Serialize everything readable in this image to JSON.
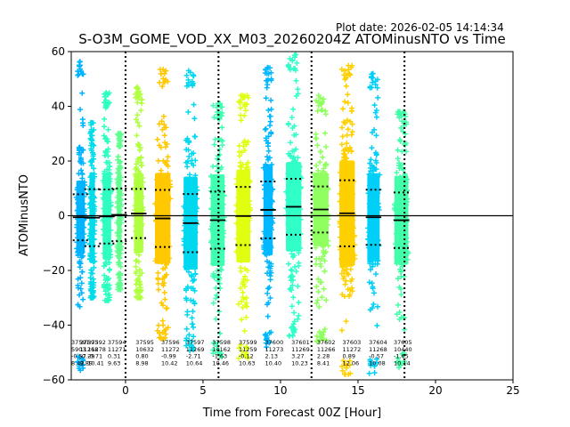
{
  "chart_data": {
    "type": "scatter",
    "plot_date_label": "Plot date: 2026-02-05 14:14:34",
    "title": "S-O3M_GOME_VOD_XX_M03_20260204Z ATOMinusNTO vs Time",
    "xlabel": "Time from Forecast 00Z [Hour]",
    "ylabel": "ATOMinusNTO",
    "xlim": [
      -3.5,
      25
    ],
    "ylim": [
      -60,
      60
    ],
    "xticks": [
      0,
      5,
      10,
      15,
      20,
      25
    ],
    "yticks": [
      -60,
      -40,
      -20,
      0,
      20,
      40,
      60
    ],
    "zero_line": 0,
    "vertical_dotted_lines_x": [
      0,
      6,
      12,
      18
    ],
    "marker": "+",
    "series": [
      {
        "orbit": "37591",
        "count": "5903",
        "mean": -0.57,
        "std": 8.42,
        "mean_label": "-0.57",
        "std_label": "8.42",
        "x_center": -2.9,
        "x_width": 0.55,
        "y_min": -57,
        "y_max": 57,
        "color": "#00b4ff"
      },
      {
        "orbit": "37592",
        "count": "11278",
        "mean": -0.71,
        "std": 10.41,
        "mean_label": "-0.71",
        "std_label": "10.41",
        "x_center": -2.15,
        "x_width": 0.35,
        "y_min": -30,
        "y_max": 34,
        "color": "#00dcea"
      },
      {
        "orbit": "37593",
        "count": "11268",
        "mean": -0.29,
        "std": 9.89,
        "mean_label": "-0.29",
        "std_label": "9.89",
        "x_center": -1.2,
        "x_width": 0.55,
        "y_min": -31,
        "y_max": 45,
        "color": "#2effc0"
      },
      {
        "orbit": "37594",
        "count": "11271",
        "mean": 0.31,
        "std": 9.63,
        "mean_label": "0.31",
        "std_label": "9.63",
        "x_center": -0.4,
        "x_width": 0.3,
        "y_min": -27,
        "y_max": 30,
        "color": "#60ff90"
      },
      {
        "orbit": "37595",
        "count": "10632",
        "mean": 0.8,
        "std": 8.98,
        "mean_label": "0.80",
        "std_label": "8.98",
        "x_center": 0.85,
        "x_width": 0.6,
        "y_min": -30,
        "y_max": 47,
        "color": "#b0ff40"
      },
      {
        "orbit": "37596",
        "count": "11272",
        "mean": -0.99,
        "std": 10.42,
        "mean_label": "-0.99",
        "std_label": "10.42",
        "x_center": 2.4,
        "x_width": 1.0,
        "y_min": -45,
        "y_max": 54,
        "color": "#ffc800"
      },
      {
        "orbit": "37597",
        "count": "11269",
        "mean": -2.71,
        "std": 10.64,
        "mean_label": "-2.71",
        "std_label": "10.64",
        "x_center": 4.2,
        "x_width": 0.9,
        "y_min": -50,
        "y_max": 53,
        "color": "#00d8f0"
      },
      {
        "orbit": "37598",
        "count": "14162",
        "mean": -1.63,
        "std": 10.46,
        "mean_label": "-1.63",
        "std_label": "10.46",
        "x_center": 5.95,
        "x_width": 0.9,
        "y_min": -52,
        "y_max": 41,
        "color": "#40ffb0"
      },
      {
        "orbit": "37599",
        "count": "11259",
        "mean": -0.12,
        "std": 10.63,
        "mean_label": "-0.12",
        "std_label": "10.63",
        "x_center": 7.6,
        "x_width": 0.9,
        "y_min": -53,
        "y_max": 44,
        "color": "#e0ff10"
      },
      {
        "orbit": "37600",
        "count": "11273",
        "mean": 2.13,
        "std": 10.4,
        "mean_label": "2.13",
        "std_label": "10.40",
        "x_center": 9.2,
        "x_width": 0.6,
        "y_min": -48,
        "y_max": 55,
        "color": "#00b8ff"
      },
      {
        "orbit": "37601",
        "count": "11269",
        "mean": 3.27,
        "std": 10.23,
        "mean_label": "3.27",
        "std_label": "10.23",
        "x_center": 10.85,
        "x_width": 1.0,
        "y_min": -44,
        "y_max": 59,
        "color": "#30ffc8"
      },
      {
        "orbit": "37602",
        "count": "11266",
        "mean": 2.28,
        "std": 8.41,
        "mean_label": "2.28",
        "std_label": "8.41",
        "x_center": 12.6,
        "x_width": 1.0,
        "y_min": -47,
        "y_max": 44,
        "color": "#90ff60"
      },
      {
        "orbit": "37603",
        "count": "11272",
        "mean": 0.89,
        "std": 12.06,
        "mean_label": "0.89",
        "std_label": "12.06",
        "x_center": 14.3,
        "x_width": 1.0,
        "y_min": -58,
        "y_max": 55,
        "color": "#ffd000"
      },
      {
        "orbit": "37604",
        "count": "11268",
        "mean": -0.57,
        "std": 10.08,
        "mean_label": "-0.57",
        "std_label": "10.08",
        "x_center": 16.0,
        "x_width": 0.8,
        "y_min": -58,
        "y_max": 52,
        "color": "#00d0f8"
      },
      {
        "orbit": "37605",
        "count": "10440",
        "mean": -1.65,
        "std": 10.14,
        "mean_label": "-1.65",
        "std_label": "10.14",
        "x_center": 17.8,
        "x_width": 0.9,
        "y_min": -56,
        "y_max": 38,
        "color": "#40ffa8"
      }
    ],
    "stats_columns": [
      {
        "x": -3.5,
        "orbit": "37591",
        "count": "5903",
        "mean": "-0.57",
        "std": "8.42"
      },
      {
        "x": -2.45,
        "orbit": "37592",
        "count": "11278",
        "mean": "-0.71",
        "std": "10.41"
      },
      {
        "x": -2.95,
        "orbit": "37593",
        "count": "11268",
        "mean": "-0.29",
        "std": "9.89"
      },
      {
        "x": -1.15,
        "orbit": "37594",
        "count": "11271",
        "mean": "0.31",
        "std": "9.63"
      },
      {
        "x": 0.65,
        "orbit": "37595",
        "count": "10632",
        "mean": "0.80",
        "std": "8.98"
      },
      {
        "x": 2.3,
        "orbit": "37596",
        "count": "11272",
        "mean": "-0.99",
        "std": "10.42"
      },
      {
        "x": 3.9,
        "orbit": "37597",
        "count": "11269",
        "mean": "-2.71",
        "std": "10.64"
      },
      {
        "x": 5.6,
        "orbit": "37598",
        "count": "14162",
        "mean": "-1.63",
        "std": "10.46"
      },
      {
        "x": 7.3,
        "orbit": "37599",
        "count": "11259",
        "mean": "-0.12",
        "std": "10.63"
      },
      {
        "x": 9.0,
        "orbit": "37600",
        "count": "11273",
        "mean": "2.13",
        "std": "10.40"
      },
      {
        "x": 10.7,
        "orbit": "37601",
        "count": "11269",
        "mean": "3.27",
        "std": "10.23"
      },
      {
        "x": 12.35,
        "orbit": "37602",
        "count": "11266",
        "mean": "2.28",
        "std": "8.41"
      },
      {
        "x": 14.0,
        "orbit": "37603",
        "count": "11272",
        "mean": "0.89",
        "std": "12.06"
      },
      {
        "x": 15.7,
        "orbit": "37604",
        "count": "11268",
        "mean": "-0.57",
        "std": "10.08"
      },
      {
        "x": 17.3,
        "orbit": "37605",
        "count": "10440",
        "mean": "-1.65",
        "std": "10.14"
      }
    ]
  }
}
